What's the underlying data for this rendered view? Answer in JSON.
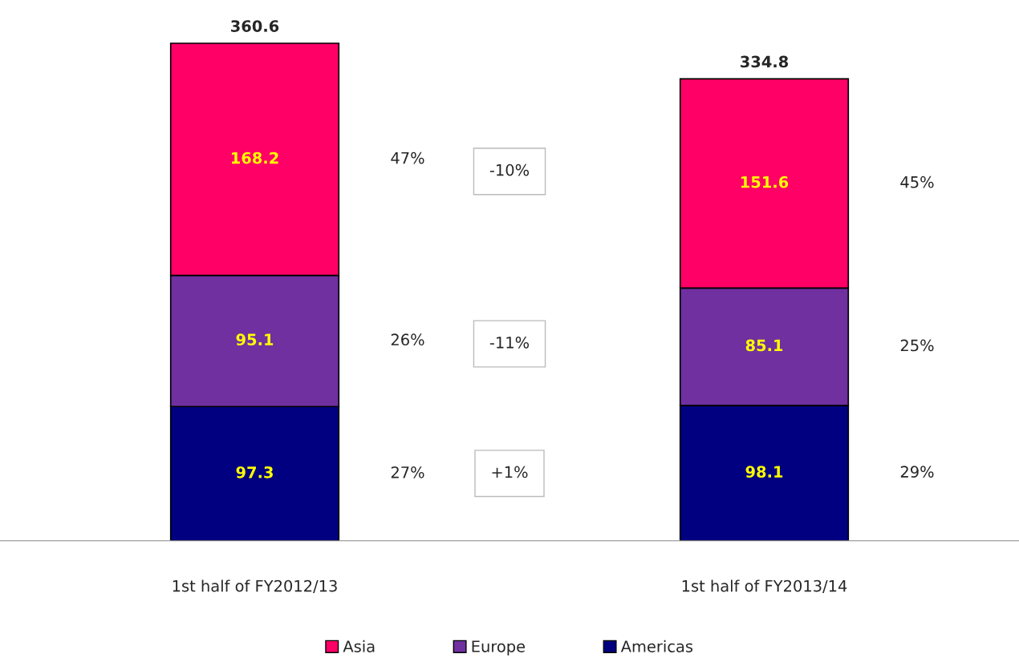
{
  "chart_data": {
    "type": "bar",
    "stacked": true,
    "categories": [
      "1st half of FY2012/13",
      "1st half of FY2013/14"
    ],
    "series": [
      {
        "name": "Americas",
        "color": "#000080",
        "values": [
          97.3,
          98.1
        ]
      },
      {
        "name": "Europe",
        "color": "#7030a0",
        "values": [
          95.1,
          85.1
        ]
      },
      {
        "name": "Asia",
        "color": "#ff0066",
        "values": [
          168.2,
          151.6
        ]
      }
    ],
    "data_labels": true,
    "totals": [
      "360.6",
      "334.8"
    ],
    "tick_labels": "x",
    "legend": "bottom",
    "annotations": [
      "27%",
      "26%",
      "47%",
      "29%",
      "25%",
      "45%",
      "-10%",
      "-11%",
      "+1%"
    ]
  }
}
